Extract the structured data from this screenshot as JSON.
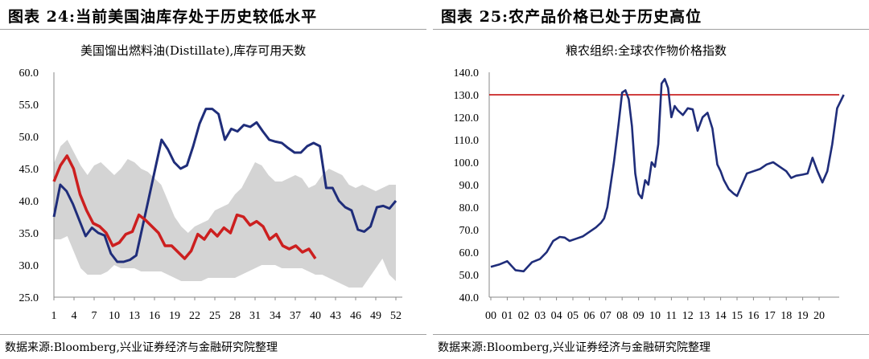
{
  "left": {
    "figure_title": "图表 24:当前美国油库存处于历史较低水平",
    "chart_title": "美国馏出燃料油(Distillate),库存可用天数",
    "source": "数据来源:Bloomberg,兴业证券经济与金融研究院整理"
  },
  "right": {
    "figure_title": "图表 25:农产品价格已处于历史高位",
    "chart_title": "粮农组织:全球农作物价格指数",
    "source": "数据来源:Bloomberg,兴业证券经济与金融研究院整理"
  },
  "colors": {
    "navy": "#1f2d7a",
    "red": "#cc1f1f",
    "band": "#d4d4d4",
    "refline": "#c00000"
  },
  "chart_data": [
    {
      "type": "line",
      "title": "美国馏出燃料油(Distillate),库存可用天数",
      "xlabel": "",
      "ylabel": "",
      "xlim": [
        1,
        52
      ],
      "ylim": [
        25,
        60
      ],
      "y_ticks": [
        "25.0",
        "30.0",
        "35.0",
        "40.0",
        "45.0",
        "50.0",
        "55.0",
        "60.0"
      ],
      "x_ticks": [
        1,
        4,
        7,
        10,
        13,
        16,
        19,
        22,
        25,
        28,
        31,
        34,
        37,
        40,
        43,
        46,
        49,
        52
      ],
      "band": {
        "upper": [
          45.8,
          48.5,
          49.5,
          47.5,
          45.5,
          44,
          45.5,
          46,
          45,
          44,
          45,
          46.5,
          46,
          45,
          44.5,
          43.5,
          42.5,
          40,
          37.5,
          36,
          35,
          36,
          36.5,
          37,
          38.5,
          39,
          39.5,
          41,
          42,
          44,
          46,
          45.5,
          44,
          43,
          43,
          43.5,
          44,
          43.5,
          42,
          42.5,
          44,
          45,
          44.5,
          44,
          42.5,
          42,
          42.5,
          42,
          41.5,
          42,
          42.5,
          42.5
        ],
        "lower": [
          34,
          34,
          34.5,
          32,
          29.5,
          28.5,
          28.5,
          28.5,
          29,
          30,
          29.5,
          29.5,
          29.5,
          29,
          29,
          29,
          29,
          28.5,
          28,
          27.5,
          27.5,
          27.5,
          27.5,
          28,
          28,
          28,
          28,
          28,
          28.5,
          29,
          29.5,
          30,
          30,
          30,
          29.5,
          29.5,
          29.5,
          29.5,
          29,
          28.5,
          28.5,
          28,
          27.5,
          27,
          26.5,
          26.5,
          26.5,
          28,
          29.5,
          31,
          28.5,
          27.5
        ]
      },
      "series": [
        {
          "values": [
            37.5,
            42.5,
            41.5,
            39.5,
            37,
            34.5,
            35.8,
            35,
            34.6,
            31.8,
            30.5,
            30.5,
            30.8,
            31.5,
            36,
            40.5,
            45,
            49.5,
            48,
            46,
            45,
            45.5,
            48.5,
            52,
            54.3,
            54.3,
            53.5,
            49.5,
            51.2,
            50.8,
            51.8,
            51.5,
            52.2,
            50.8,
            49.5,
            49.2,
            49,
            48.2,
            47.5,
            47.5,
            48.5,
            49,
            48.5,
            42,
            42,
            40,
            39,
            38.5,
            35.5,
            35.2,
            36,
            39,
            39.2,
            38.8,
            40
          ]
        },
        {
          "values": [
            43,
            45.5,
            47,
            45,
            41,
            38.5,
            36.5,
            36,
            35,
            33,
            33.5,
            34.8,
            35.2,
            37.8,
            37,
            36,
            35,
            33,
            33,
            32,
            31,
            32.2,
            34.8,
            34,
            35.5,
            34.5,
            35.8,
            35,
            37.8,
            37.5,
            36.2,
            36.8,
            36,
            34,
            34.8,
            33,
            32.5,
            33,
            32,
            32.5,
            31
          ]
        }
      ]
    },
    {
      "type": "line",
      "title": "粮农组织:全球农作物价格指数",
      "xlabel": "",
      "ylabel": "",
      "ylim": [
        40,
        140
      ],
      "y_ticks": [
        "40.0",
        "50.0",
        "60.0",
        "70.0",
        "80.0",
        "90.0",
        "100.0",
        "110.0",
        "120.0",
        "130.0",
        "140.0"
      ],
      "x_ticks": [
        "00",
        "01",
        "02",
        "03",
        "04",
        "05",
        "06",
        "07",
        "08",
        "09",
        "10",
        "11",
        "12",
        "13",
        "14",
        "15",
        "16",
        "17",
        "18",
        "19",
        "20"
      ],
      "reference_line": 130,
      "series": [
        {
          "x": [
            2000,
            2000.5,
            2001,
            2001.5,
            2002,
            2002.5,
            2003,
            2003.4,
            2003.8,
            2004.2,
            2004.5,
            2004.8,
            2005.2,
            2005.6,
            2006,
            2006.4,
            2006.7,
            2006.9,
            2007.1,
            2007.3,
            2007.5,
            2007.7,
            2007.8,
            2008,
            2008.2,
            2008.4,
            2008.6,
            2008.8,
            2009,
            2009.2,
            2009.4,
            2009.6,
            2009.8,
            2010,
            2010.2,
            2010.4,
            2010.6,
            2010.8,
            2011,
            2011.2,
            2011.4,
            2011.7,
            2012,
            2012.3,
            2012.6,
            2012.9,
            2013.2,
            2013.5,
            2013.8,
            2014,
            2014.2,
            2014.5,
            2014.8,
            2015,
            2015.3,
            2015.6,
            2016,
            2016.4,
            2016.8,
            2017.2,
            2017.6,
            2018,
            2018.3,
            2018.6,
            2019,
            2019.3,
            2019.6,
            2019.9,
            2020.2,
            2020.5,
            2020.8,
            2021.1,
            2021.3,
            2021.5
          ],
          "values": [
            53.5,
            54.5,
            56,
            52,
            51.5,
            55.5,
            57,
            60,
            65,
            66.8,
            66.5,
            65,
            66,
            67,
            69,
            71,
            73,
            75,
            80,
            90,
            100,
            112,
            118,
            131,
            132,
            128,
            116,
            95,
            86,
            84,
            92,
            90,
            100,
            98,
            108,
            135,
            137,
            133,
            120,
            125,
            123,
            121,
            124,
            123.5,
            114,
            120,
            122,
            115,
            99,
            96,
            92,
            88,
            86,
            85,
            90,
            95,
            96,
            97,
            99,
            100,
            98,
            96,
            93,
            94,
            94.5,
            95,
            102,
            96,
            91,
            96,
            108,
            124,
            127,
            130
          ]
        }
      ]
    }
  ]
}
